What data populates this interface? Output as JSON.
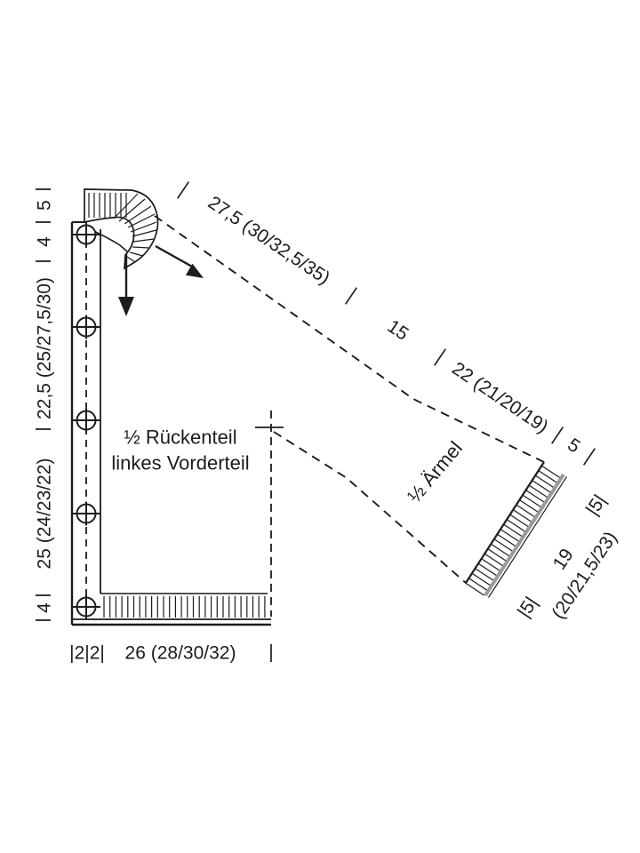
{
  "colors": {
    "line": "#1c1c1c",
    "rib_shadow": "#9a9a9a",
    "background": "#ffffff"
  },
  "body_piece": {
    "name_line1": "½ Rückenteil",
    "name_line2": "linkes Vorderteil",
    "left_ruler": {
      "neckband": "5",
      "shoulder": "4",
      "upper": "22,5 (25/27,5/30)",
      "lower": "25 (24/23/22)",
      "hem": "4"
    },
    "bottom_ruler": {
      "bands": "|2|2|",
      "width": "26 (28/30/32)",
      "end_tick": "|"
    }
  },
  "sleeve": {
    "name": "½ Ärmel",
    "top_ruler": {
      "seg1": "27,5 (30/32,5/35)",
      "seg2": "15",
      "seg3": "22 (21/20/19)",
      "seg4": "5"
    },
    "cuff": {
      "side_depth": "|5|",
      "bottom_depth": "|5|",
      "edge_line1": "19",
      "edge_line2": "(20/21,5/23)"
    }
  }
}
